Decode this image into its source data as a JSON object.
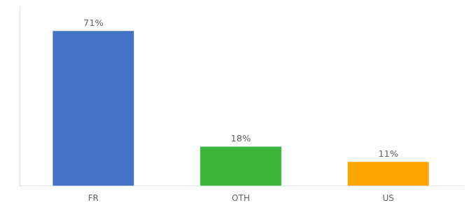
{
  "chart_data": {
    "type": "bar",
    "categories": [
      "FR",
      "OTH",
      "US"
    ],
    "values": [
      71,
      18,
      11
    ],
    "value_labels": [
      "71%",
      "18%",
      "11%"
    ],
    "colors": [
      "#4472c4",
      "#3bb53b",
      "#ffa500"
    ],
    "ylim": [
      0,
      82
    ],
    "grid": false,
    "data_labels": true,
    "tick_labels": "x"
  }
}
